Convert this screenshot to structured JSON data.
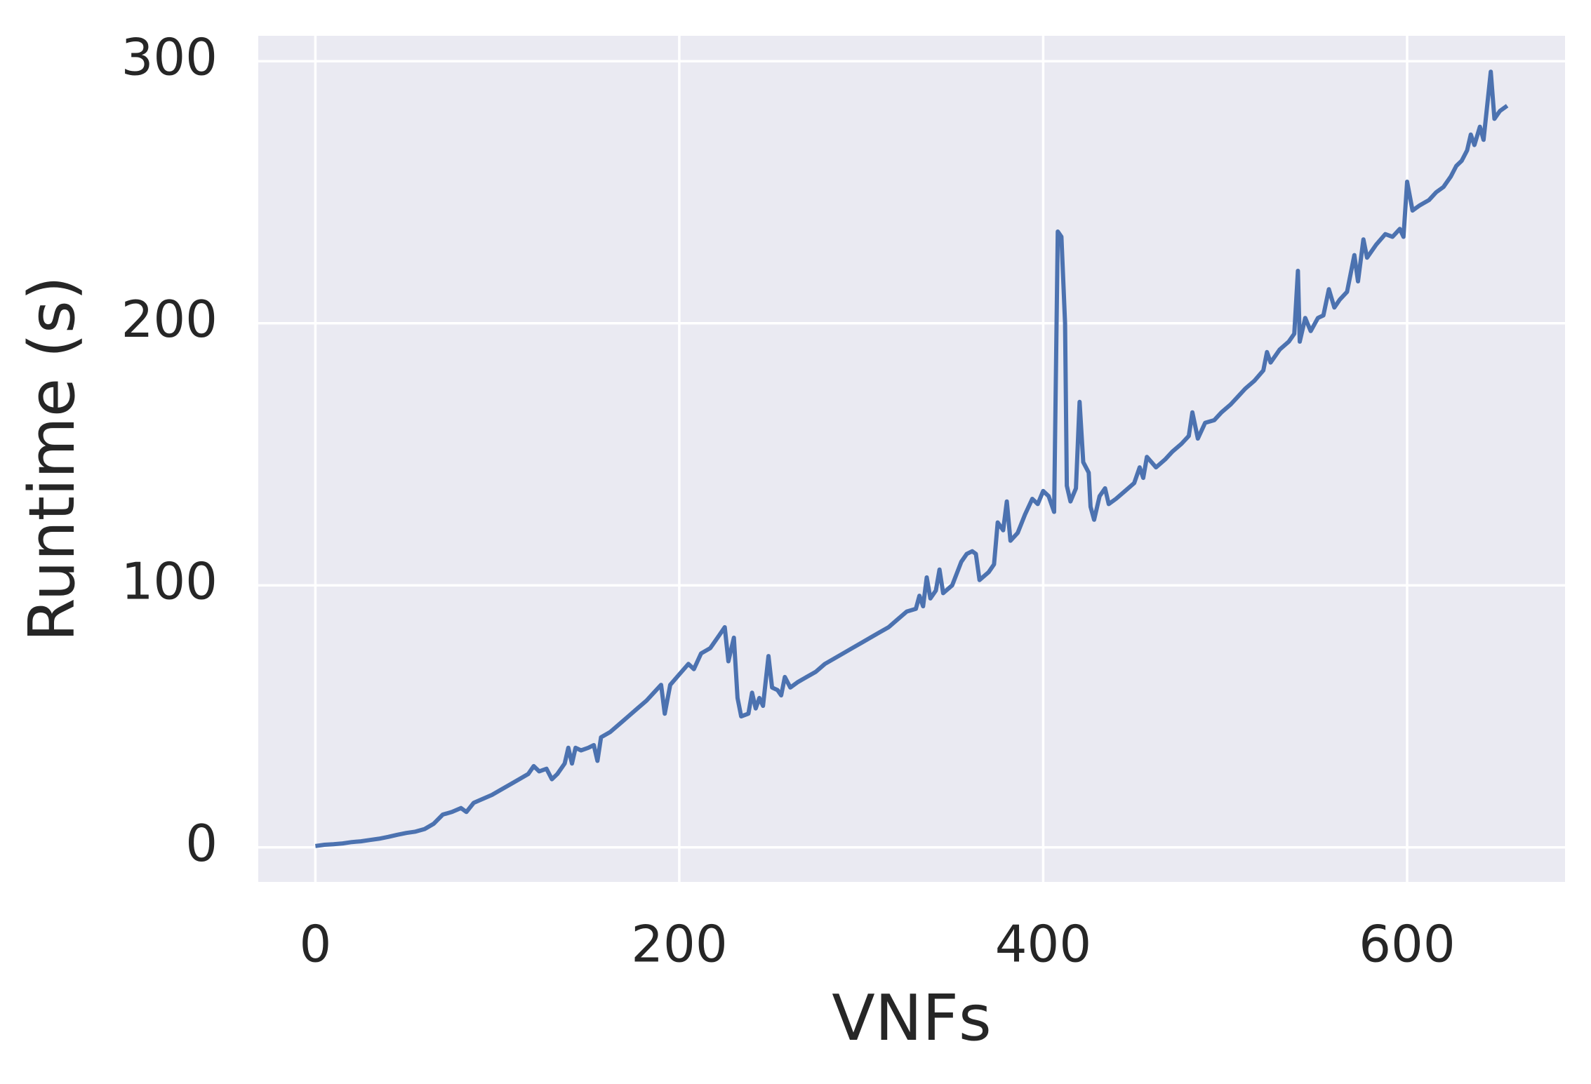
{
  "chart_data": {
    "type": "line",
    "xlabel": "VNFs",
    "ylabel": "Runtime (s)",
    "color": "#4c72b0",
    "background": "#eaeaf2",
    "grid": true,
    "xlim": [
      -31.4,
      686.8
    ],
    "ylim": [
      -13.2,
      309.7
    ],
    "xticks": [
      0,
      200,
      400,
      600
    ],
    "yticks": [
      0,
      100,
      200,
      300
    ],
    "x": [
      0,
      5,
      10,
      15,
      20,
      25,
      30,
      35,
      40,
      45,
      50,
      55,
      60,
      65,
      70,
      75,
      80,
      83,
      87,
      92,
      97,
      102,
      107,
      112,
      117,
      120,
      123,
      127,
      130,
      133,
      137,
      139,
      141,
      143,
      146,
      150,
      153,
      155,
      157,
      162,
      167,
      172,
      177,
      182,
      186,
      190,
      192,
      195,
      200,
      205,
      208,
      212,
      217,
      222,
      225,
      227,
      230,
      232,
      234,
      238,
      240,
      242,
      244,
      246,
      249,
      251,
      254,
      256,
      258,
      261,
      265,
      270,
      275,
      280,
      285,
      290,
      295,
      300,
      305,
      310,
      315,
      320,
      325,
      330,
      332,
      334,
      336,
      338,
      341,
      343,
      345,
      350,
      355,
      358,
      361,
      363,
      365,
      370,
      373,
      375,
      378,
      380,
      382,
      386,
      390,
      394,
      397,
      400,
      403,
      406,
      408,
      410,
      412,
      413,
      415,
      418,
      420,
      422,
      425,
      426,
      428,
      431,
      434,
      436,
      440,
      445,
      450,
      453,
      455,
      457,
      462,
      467,
      471,
      476,
      480,
      482,
      485,
      489,
      494,
      498,
      503,
      507,
      511,
      516,
      521,
      523,
      525,
      530,
      535,
      538,
      540,
      541,
      544,
      547,
      551,
      554,
      557,
      560,
      563,
      567,
      571,
      573,
      576,
      578,
      583,
      588,
      592,
      596,
      598,
      600,
      603,
      607,
      612,
      616,
      620,
      624,
      627,
      630,
      633,
      635,
      637,
      640,
      642,
      646,
      648,
      651,
      655
    ],
    "values": [
      0.5,
      1,
      1.2,
      1.5,
      2,
      2.3,
      2.8,
      3.3,
      4,
      4.8,
      5.5,
      6,
      7,
      9,
      12.5,
      13.5,
      15,
      13.5,
      17,
      18.5,
      20,
      22,
      24,
      26,
      28,
      31,
      29,
      30,
      26,
      28,
      32,
      38,
      32,
      38,
      37,
      38,
      39,
      33,
      42,
      44,
      47,
      50,
      53,
      56,
      59,
      62,
      51,
      62,
      66,
      70,
      68,
      74,
      76,
      81,
      84,
      71,
      80,
      57,
      50,
      51,
      59,
      53,
      57,
      54,
      73,
      61,
      60,
      58,
      65,
      61,
      63,
      65,
      67,
      70,
      72,
      74,
      76,
      78,
      80,
      82,
      84,
      87,
      90,
      91,
      96,
      92,
      103,
      95,
      98,
      106,
      97,
      100,
      109,
      112,
      113,
      112,
      102,
      105,
      108,
      124,
      121,
      132,
      117,
      120,
      127,
      133,
      131,
      136,
      134,
      128,
      235,
      233,
      200,
      138,
      132,
      137,
      170,
      147,
      143,
      130,
      125,
      134,
      137,
      131,
      133,
      136,
      139,
      145,
      141,
      149,
      145,
      148,
      151,
      154,
      157,
      166,
      156,
      162,
      163,
      166,
      169,
      172,
      175,
      178,
      182,
      189,
      185,
      190,
      193,
      196,
      220,
      193,
      202,
      197,
      202,
      203,
      213,
      206,
      209,
      212,
      226,
      216,
      232,
      225,
      230,
      234,
      233,
      236,
      233,
      254,
      243,
      245,
      247,
      250,
      252,
      256,
      260,
      262,
      266,
      272,
      268,
      275,
      270,
      296,
      278,
      281,
      283
    ]
  }
}
